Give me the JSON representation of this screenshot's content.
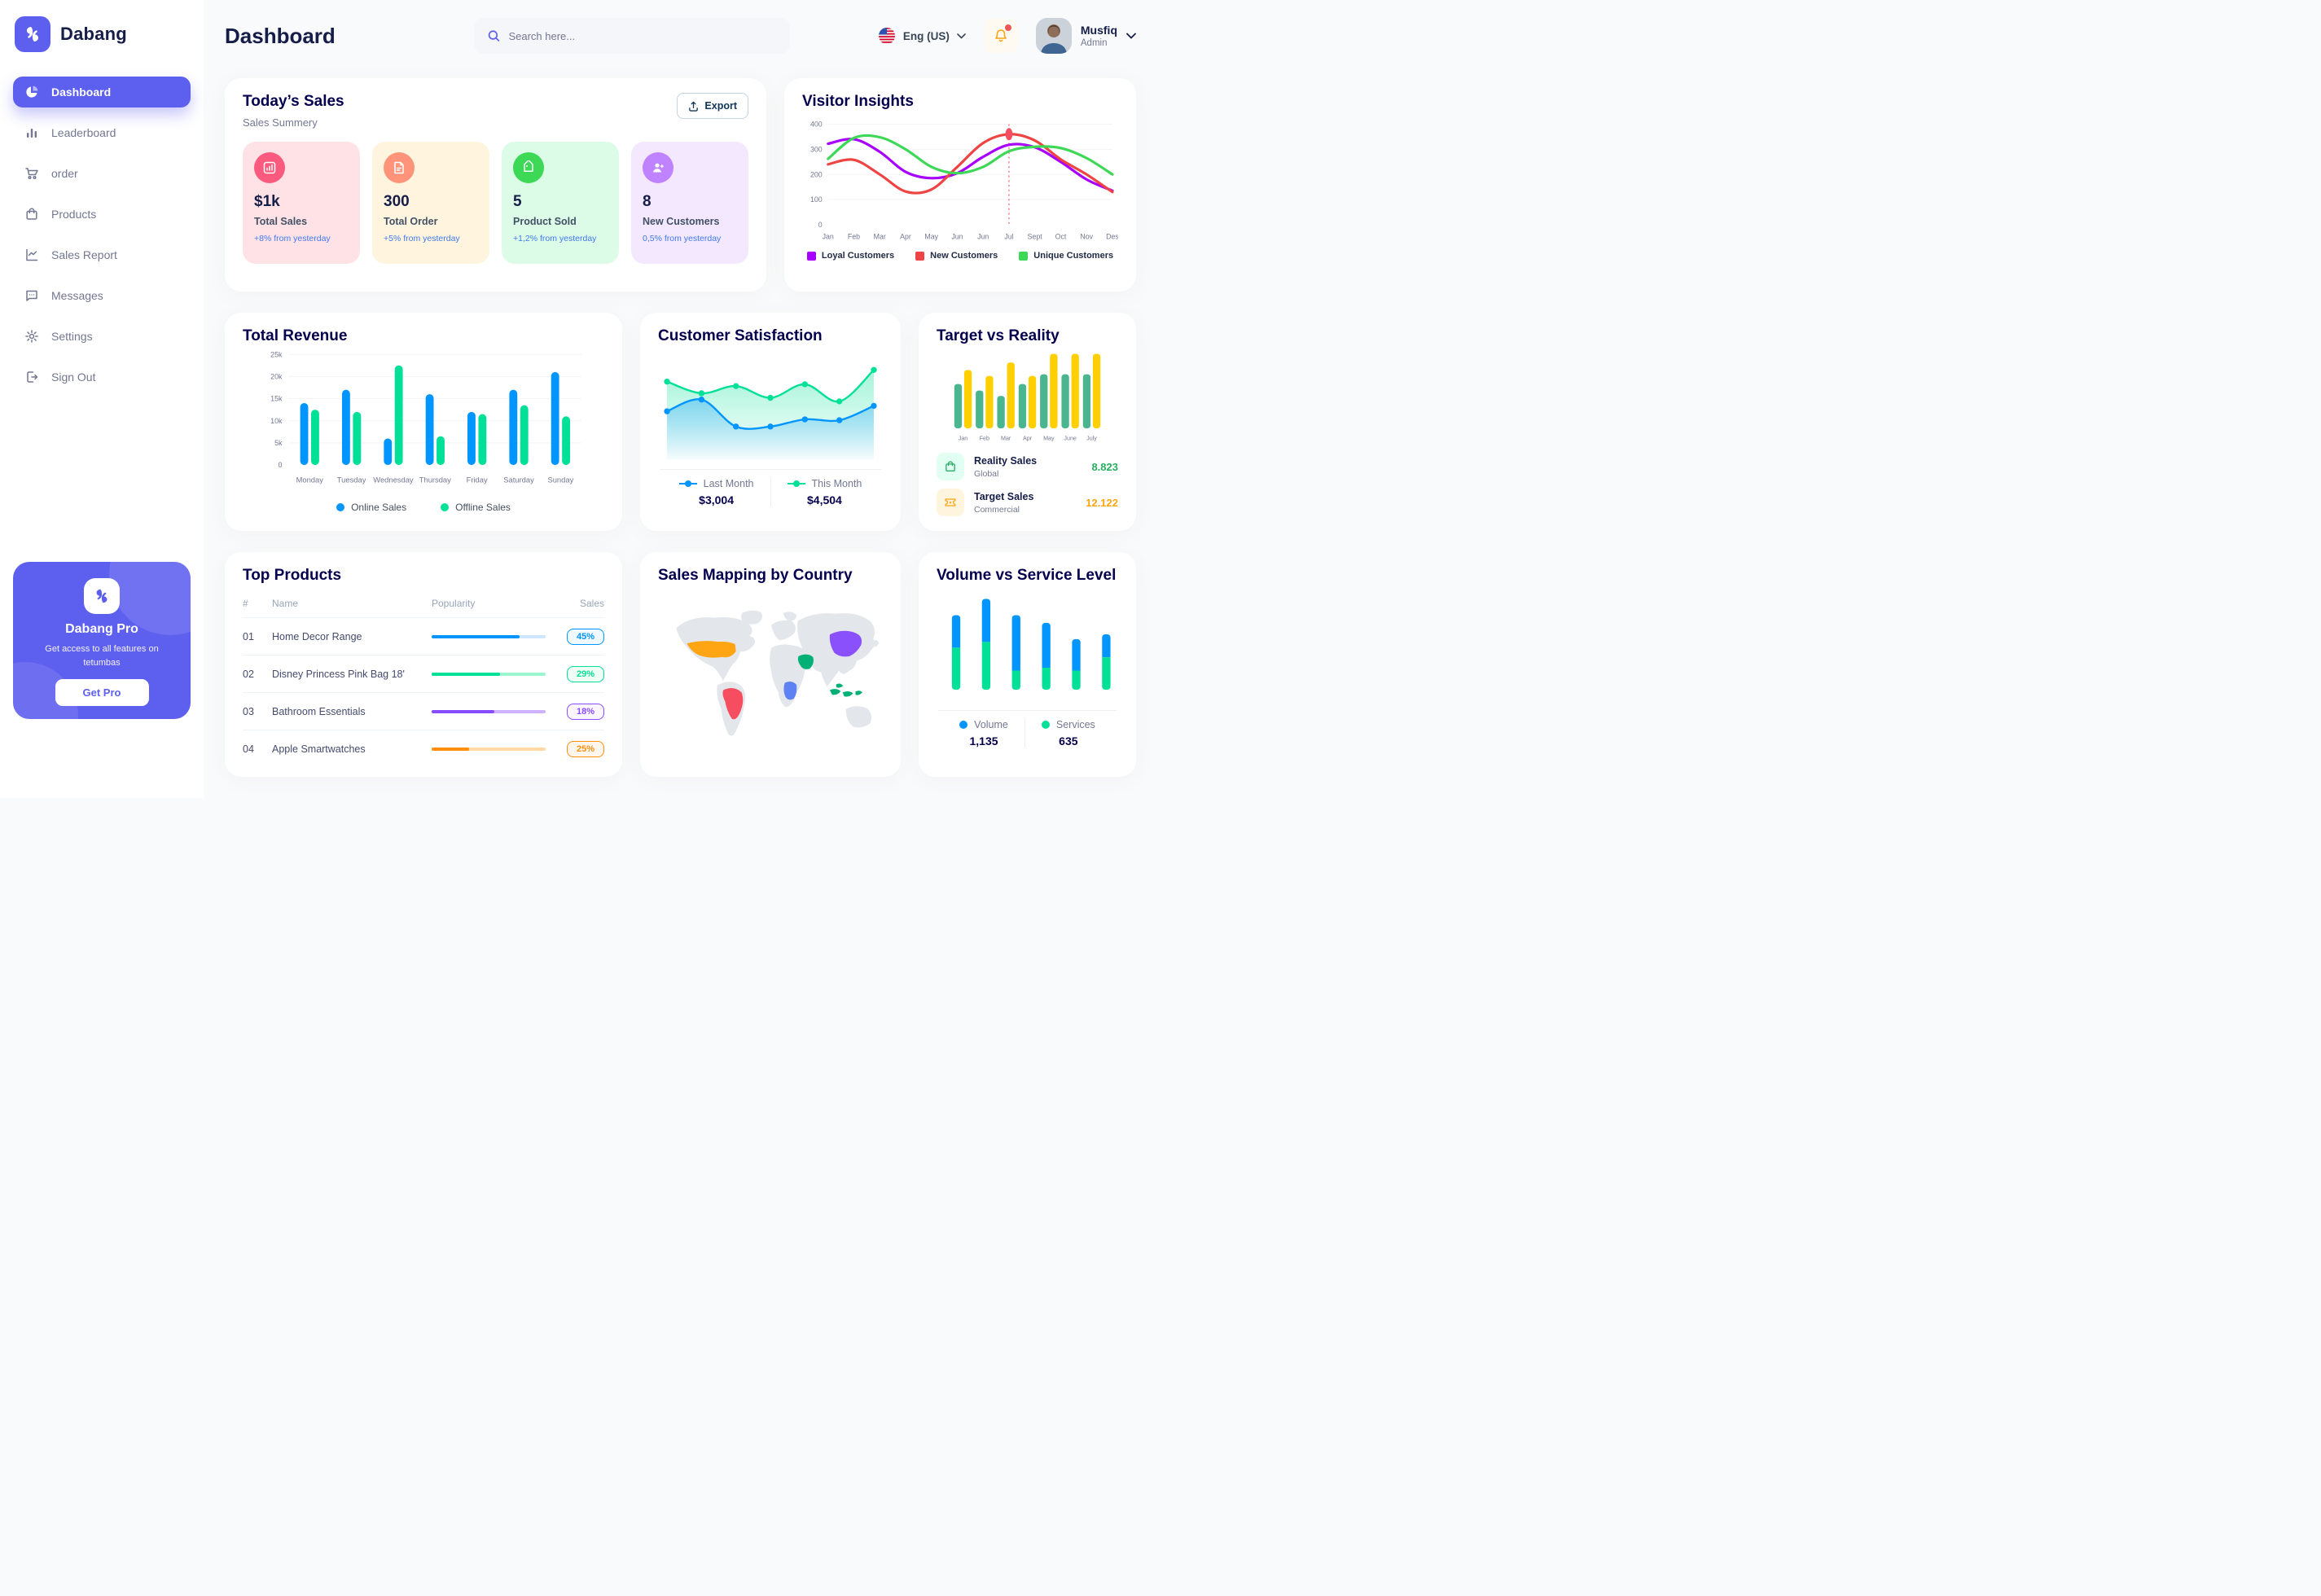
{
  "app": {
    "brand": "Dabang",
    "accent_color": "#5D5FEF"
  },
  "sidebar": {
    "items": [
      {
        "label": "Dashboard",
        "icon": "pie-chart-icon",
        "active": true
      },
      {
        "label": "Leaderboard",
        "icon": "bar-chart-icon",
        "active": false
      },
      {
        "label": "order",
        "icon": "cart-icon",
        "active": false
      },
      {
        "label": "Products",
        "icon": "bag-icon",
        "active": false
      },
      {
        "label": "Sales Report",
        "icon": "line-chart-icon",
        "active": false
      },
      {
        "label": "Messages",
        "icon": "message-icon",
        "active": false
      },
      {
        "label": "Settings",
        "icon": "gear-icon",
        "active": false
      },
      {
        "label": "Sign Out",
        "icon": "sign-out-icon",
        "active": false
      }
    ],
    "pro": {
      "title": "Dabang Pro",
      "description": "Get access to all features on tetumbas",
      "button": "Get Pro"
    }
  },
  "header": {
    "title": "Dashboard",
    "search_placeholder": "Search here...",
    "language": "Eng (US)",
    "notification_unread": true,
    "user": {
      "name": "Musfiq",
      "role": "Admin"
    }
  },
  "today_sales": {
    "title": "Today’s Sales",
    "subtitle": "Sales Summery",
    "export_label": "Export",
    "cards": [
      {
        "value": "$1k",
        "label": "Total Sales",
        "delta": "+8% from yesterday",
        "icon": "chart-bars-icon",
        "bg": "#FFE2E5",
        "icon_bg": "#FA5A7D"
      },
      {
        "value": "300",
        "label": "Total Order",
        "delta": "+5% from yesterday",
        "icon": "order-file-icon",
        "bg": "#FFF4DE",
        "icon_bg": "#FF947A"
      },
      {
        "value": "5",
        "label": "Product Sold",
        "delta": "+1,2% from yesterday",
        "icon": "tag-icon",
        "bg": "#DCFCE7",
        "icon_bg": "#3CD856"
      },
      {
        "value": "8",
        "label": "New Customers",
        "delta": "0,5% from yesterday",
        "icon": "user-plus-icon",
        "bg": "#F3E8FF",
        "icon_bg": "#BF83FF"
      }
    ]
  },
  "visitor_insights": {
    "title": "Visitor Insights",
    "chart_data": {
      "type": "line",
      "x": [
        "Jan",
        "Feb",
        "Mar",
        "Apr",
        "May",
        "Jun",
        "Jun",
        "Jul",
        "Sept",
        "Oct",
        "Nov",
        "Des"
      ],
      "ylim": [
        0,
        400
      ],
      "yticks": [
        0,
        100,
        200,
        300,
        400
      ],
      "grid": true,
      "legend_position": "bottom",
      "series": [
        {
          "name": "Loyal Customers",
          "color": "#A700FF",
          "values": [
            322,
            340,
            290,
            210,
            185,
            205,
            270,
            318,
            308,
            250,
            180,
            135
          ]
        },
        {
          "name": "New Customers",
          "color": "#EF4444",
          "values": [
            240,
            258,
            200,
            132,
            140,
            230,
            325,
            360,
            335,
            260,
            200,
            130
          ]
        },
        {
          "name": "Unique Customers",
          "color": "#3CD856",
          "values": [
            262,
            345,
            348,
            300,
            230,
            205,
            230,
            292,
            310,
            305,
            265,
            200
          ]
        }
      ],
      "highlight": {
        "series": "New Customers",
        "index": 7,
        "month": "Jul",
        "value": 360
      }
    }
  },
  "total_revenue": {
    "title": "Total Revenue",
    "chart_data": {
      "type": "bar",
      "categories": [
        "Monday",
        "Tuesday",
        "Wednesday",
        "Thursday",
        "Friday",
        "Saturday",
        "Sunday"
      ],
      "ylim": [
        0,
        25000
      ],
      "yticks": [
        0,
        5000,
        10000,
        15000,
        20000,
        25000
      ],
      "ytick_labels": [
        "0",
        "5k",
        "10k",
        "15k",
        "20k",
        "25k"
      ],
      "grid": true,
      "legend_position": "bottom",
      "series": [
        {
          "name": "Online Sales",
          "color": "#0095FF",
          "values": [
            14000,
            17000,
            6000,
            16000,
            12000,
            17000,
            21000
          ]
        },
        {
          "name": "Offline Sales",
          "color": "#00E096",
          "values": [
            12500,
            12000,
            22500,
            6500,
            11500,
            13500,
            11000
          ]
        }
      ]
    }
  },
  "customer_satisfaction": {
    "title": "Customer Satisfaction",
    "chart_data": {
      "type": "area",
      "ylim": [
        0,
        100
      ],
      "legend_position": "bottom",
      "series": [
        {
          "name": "Last Month",
          "color": "#0095FF",
          "total": "$3,004",
          "values": [
            42,
            55,
            25,
            25,
            33,
            32,
            48
          ]
        },
        {
          "name": "This Month",
          "color": "#00E096",
          "total": "$4,504",
          "values": [
            75,
            62,
            70,
            57,
            72,
            53,
            88
          ]
        }
      ]
    }
  },
  "target_vs_reality": {
    "title": "Target vs Reality",
    "chart_data": {
      "type": "bar",
      "categories": [
        "Jan",
        "Feb",
        "Mar",
        "Apr",
        "May",
        "June",
        "July"
      ],
      "ylim": [
        0,
        14
      ],
      "series": [
        {
          "name": "Reality Sales",
          "color": "#4AB58E",
          "values": [
            8.2,
            7,
            6,
            8.2,
            10,
            10,
            10
          ]
        },
        {
          "name": "Target Sales",
          "color": "#FFCF00",
          "values": [
            10.8,
            9.7,
            12.2,
            9.7,
            13.8,
            13.8,
            13.8
          ]
        }
      ]
    },
    "legend": [
      {
        "name": "Reality Sales",
        "sub": "Global",
        "value": "8.823",
        "value_color": "#27AE60",
        "icon": "bag-icon",
        "icon_bg": "#E2FFF3",
        "icon_color": "#27AE60"
      },
      {
        "name": "Target Sales",
        "sub": "Commercial",
        "value": "12.122",
        "value_color": "#FFA412",
        "icon": "ticket-icon",
        "icon_bg": "#FFF4DE",
        "icon_color": "#FFA412"
      }
    ]
  },
  "top_products": {
    "title": "Top Products",
    "columns": [
      "#",
      "Name",
      "Popularity",
      "Sales"
    ],
    "rows": [
      {
        "num": "01",
        "name": "Home Decor Range",
        "popularity_pct": 77,
        "sales": "45%",
        "color": "#0095FF",
        "track": "#CDE7FF",
        "badge_bg": "#F0F9FF"
      },
      {
        "num": "02",
        "name": "Disney Princess Pink Bag 18'",
        "popularity_pct": 60,
        "sales": "29%",
        "color": "#00E096",
        "track": "#9BF5CE",
        "badge_bg": "#F0FDF6"
      },
      {
        "num": "03",
        "name": "Bathroom Essentials",
        "popularity_pct": 55,
        "sales": "18%",
        "color": "#884DFF",
        "track": "#CFB2FF",
        "badge_bg": "#FAF5FF"
      },
      {
        "num": "04",
        "name": "Apple Smartwatches",
        "popularity_pct": 33,
        "sales": "25%",
        "color": "#FF8F0D",
        "track": "#FFD8A6",
        "badge_bg": "#FFF7ED"
      }
    ]
  },
  "sales_mapping": {
    "title": "Sales Mapping by Country",
    "countries": [
      {
        "name": "United States",
        "color": "#FFA412"
      },
      {
        "name": "Brazil",
        "color": "#F64E60"
      },
      {
        "name": "Saudi Arabia",
        "color": "#00B074"
      },
      {
        "name": "DR Congo",
        "color": "#5E81F4"
      },
      {
        "name": "China",
        "color": "#8950FC"
      },
      {
        "name": "Indonesia",
        "color": "#00B074"
      }
    ]
  },
  "volume_service": {
    "title": "Volume vs Service Level",
    "chart_data": {
      "type": "stacked-bar",
      "legend_position": "bottom",
      "series": [
        {
          "name": "Volume",
          "color": "#0095FF",
          "total": "1,135",
          "values": [
            34,
            45,
            58,
            47,
            33,
            24
          ]
        },
        {
          "name": "Services",
          "color": "#00E096",
          "total": "635",
          "values": [
            44,
            50,
            20,
            23,
            20,
            34
          ]
        }
      ]
    }
  }
}
